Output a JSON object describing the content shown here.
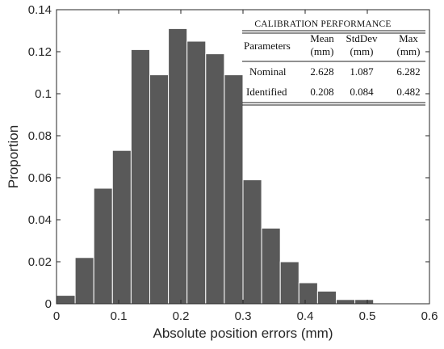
{
  "chart_data": {
    "type": "bar",
    "title": "",
    "xlabel": "Absolute position errors (mm)",
    "ylabel": "Proportion",
    "xlim": [
      0,
      0.6
    ],
    "ylim": [
      0,
      0.14
    ],
    "x_ticks": [
      "0",
      "0.1",
      "0.2",
      "0.3",
      "0.4",
      "0.5",
      "0.6"
    ],
    "y_ticks": [
      "0",
      "0.02",
      "0.04",
      "0.06",
      "0.08",
      "0.1",
      "0.12",
      "0.14"
    ],
    "bin_width": 0.03,
    "bins": [
      {
        "start": 0.0,
        "value": 0.004
      },
      {
        "start": 0.03,
        "value": 0.022
      },
      {
        "start": 0.06,
        "value": 0.055
      },
      {
        "start": 0.09,
        "value": 0.073
      },
      {
        "start": 0.12,
        "value": 0.121
      },
      {
        "start": 0.15,
        "value": 0.109
      },
      {
        "start": 0.18,
        "value": 0.131
      },
      {
        "start": 0.21,
        "value": 0.125
      },
      {
        "start": 0.24,
        "value": 0.119
      },
      {
        "start": 0.27,
        "value": 0.109
      },
      {
        "start": 0.3,
        "value": 0.059
      },
      {
        "start": 0.33,
        "value": 0.036
      },
      {
        "start": 0.36,
        "value": 0.02
      },
      {
        "start": 0.39,
        "value": 0.01
      },
      {
        "start": 0.42,
        "value": 0.006
      },
      {
        "start": 0.45,
        "value": 0.002
      },
      {
        "start": 0.48,
        "value": 0.002
      }
    ],
    "bar_color": "#595959",
    "grid": false
  },
  "table": {
    "title": "CALIBRATION PERFORMANCE",
    "header": {
      "col0": "Parameters",
      "col1": [
        "Mean",
        "(mm)"
      ],
      "col2": [
        "StdDev",
        "(mm)"
      ],
      "col3": [
        "Max",
        "(mm)"
      ]
    },
    "rows": [
      {
        "label": "Nominal",
        "mean": "2.628",
        "std": "1.087",
        "max": "6.282"
      },
      {
        "label": "Identified",
        "mean": "0.208",
        "std": "0.084",
        "max": "0.482"
      }
    ]
  }
}
